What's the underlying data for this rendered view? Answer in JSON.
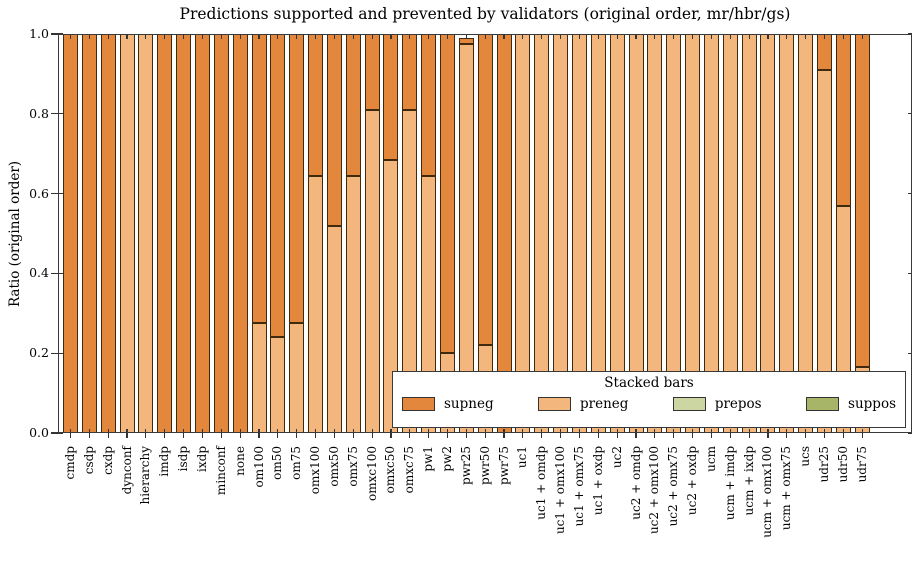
{
  "colors": {
    "background": "#ffffff",
    "axis": "#3a3a3a",
    "bar_edge": "#3f2a0e",
    "supneg": "#e2873b",
    "preneg": "#f3b67c",
    "prepos": "#cbd6a2",
    "suppos": "#a6b567"
  },
  "chart_data": {
    "type": "bar",
    "stacked": true,
    "title": "Predictions supported and prevented by validators (original order, mr/hbr/gs)",
    "ylabel": "Ratio (original order)",
    "xlabel": "",
    "ylim": [
      0,
      1
    ],
    "yticklabels": [
      "0.0",
      "0.2",
      "0.4",
      "0.6",
      "0.8",
      "1.0"
    ],
    "grid": false,
    "legend": {
      "title": "Stacked bars",
      "position": "lower right",
      "entries": [
        "supneg",
        "preneg",
        "prepos",
        "suppos"
      ]
    },
    "stack_order_bottom_to_top": [
      "preneg",
      "supneg",
      "prepos",
      "suppos"
    ],
    "categories": [
      "cmdp",
      "csdp",
      "cxdp",
      "dynconf",
      "hierarchy",
      "imdp",
      "isdp",
      "ixdp",
      "minconf",
      "none",
      "om100",
      "om50",
      "om75",
      "omx100",
      "omx50",
      "omx75",
      "omxc100",
      "omxc50",
      "omxc75",
      "pw1",
      "pw2",
      "pwr25",
      "pwr50",
      "pwr75",
      "uc1",
      "uc1 + omdp",
      "uc1 + omx100",
      "uc1 + omx75",
      "uc1 + oxdp",
      "uc2",
      "uc2 + omdp",
      "uc2 + omx100",
      "uc2 + omx75",
      "uc2 + oxdp",
      "ucm",
      "ucm + imdp",
      "ucm + ixdp",
      "ucm + omx100",
      "ucm + omx75",
      "ucs",
      "udr25",
      "udr50",
      "udr75"
    ],
    "series": [
      {
        "name": "supneg",
        "color": "#e2873b",
        "values": [
          1,
          1,
          1,
          0,
          0,
          1,
          1,
          1,
          1,
          1,
          0.725,
          0.76,
          0.725,
          0.355,
          0.48,
          0.355,
          0.19,
          0.315,
          0.19,
          0.355,
          0.8,
          0.015,
          0.78,
          1,
          0,
          0,
          0,
          0,
          0,
          0,
          0,
          0,
          0,
          0,
          0,
          0,
          0,
          0,
          0,
          0,
          0.09,
          0.43,
          0.835
        ]
      },
      {
        "name": "preneg",
        "color": "#f3b67c",
        "values": [
          0,
          0,
          0,
          1,
          1,
          0,
          0,
          0,
          0,
          0,
          0.275,
          0.24,
          0.275,
          0.645,
          0.52,
          0.645,
          0.81,
          0.685,
          0.81,
          0.645,
          0.2,
          0.975,
          0.22,
          0,
          1,
          1,
          1,
          1,
          1,
          1,
          1,
          1,
          1,
          1,
          1,
          1,
          1,
          1,
          1,
          1,
          0.91,
          0.57,
          0.165
        ]
      },
      {
        "name": "prepos",
        "color": "#cbd6a2",
        "values": [
          0,
          0,
          0,
          0,
          0,
          0,
          0,
          0,
          0,
          0,
          0,
          0,
          0,
          0,
          0,
          0,
          0,
          0,
          0,
          0,
          0,
          0,
          0,
          0,
          0,
          0,
          0,
          0,
          0,
          0,
          0,
          0,
          0,
          0,
          0,
          0,
          0,
          0,
          0,
          0,
          0,
          0,
          0
        ]
      },
      {
        "name": "suppos",
        "color": "#a6b567",
        "values": [
          0,
          0,
          0,
          0,
          0,
          0,
          0,
          0,
          0,
          0,
          0,
          0,
          0,
          0,
          0,
          0,
          0,
          0,
          0,
          0,
          0,
          0,
          0,
          0,
          0,
          0,
          0,
          0,
          0,
          0,
          0,
          0,
          0,
          0,
          0,
          0,
          0,
          0,
          0,
          0,
          0,
          0,
          0
        ]
      }
    ]
  }
}
